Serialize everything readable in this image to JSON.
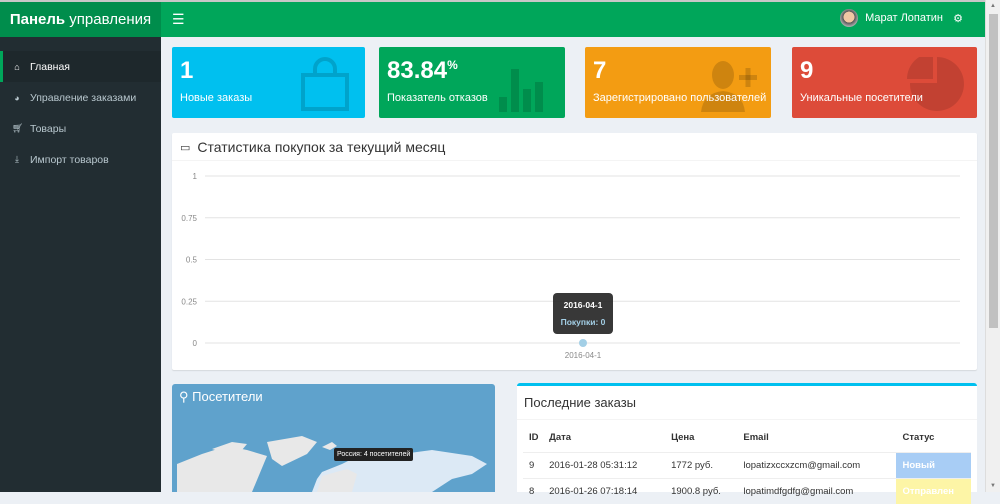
{
  "header": {
    "logo_bold": "Панель",
    "logo_rest": " управления",
    "menu_icon": "bars-icon",
    "user_name": "Марат Лопатин",
    "settings_icon": "gears-icon"
  },
  "sidebar": {
    "items": [
      {
        "label": "Главная",
        "icon": "home-icon",
        "active": true
      },
      {
        "label": "Управление заказами",
        "icon": "pie-chart-icon"
      },
      {
        "label": "Товары",
        "icon": "cart-icon"
      },
      {
        "label": "Импорт товаров",
        "icon": "download-icon"
      }
    ]
  },
  "stats": [
    {
      "value": "1",
      "suffix": "",
      "label": "Новые заказы",
      "color": "#00c0ef",
      "icon": "shopping-bag-icon"
    },
    {
      "value": "83.84",
      "suffix": "%",
      "label": "Показатель отказов",
      "color": "#00a65a",
      "icon": "bar-chart-icon"
    },
    {
      "value": "7",
      "suffix": "",
      "label": "Зарегистрировано пользователей",
      "color": "#f39c12",
      "icon": "user-plus-icon"
    },
    {
      "value": "9",
      "suffix": "",
      "label": "Уникальные посетители",
      "color": "#dd4b39",
      "icon": "pie-chart-icon"
    }
  ],
  "chart_data": {
    "type": "line",
    "title": "Статистика покупок за текущий месяц",
    "categories": [
      "2016-04-1"
    ],
    "series": [
      {
        "name": "Покупки",
        "values": [
          0
        ]
      }
    ],
    "ylim": [
      0,
      1
    ],
    "yticks": [
      "1",
      "0.75",
      "0.5",
      "0.25",
      "0"
    ],
    "grid": true,
    "tooltip": {
      "title": "2016-04-1",
      "text": "Покупки: 0"
    }
  },
  "visitors": {
    "title": "Посетители",
    "tooltip": "Россия: 4 посетителей"
  },
  "orders": {
    "title": "Последние заказы",
    "columns": [
      "ID",
      "Дата",
      "Цена",
      "Email",
      "Статус"
    ],
    "rows": [
      {
        "id": "9",
        "date": "2016-01-28 05:31:12",
        "price": "1772 руб.",
        "email": "lopatizxccxzcm@gmail.com",
        "status": "Новый",
        "status_color": "#a8cdf5"
      },
      {
        "id": "8",
        "date": "2016-01-26 07:18:14",
        "price": "1900.8 руб.",
        "email": "lopatimdfgdfg@gmail.com",
        "status": "Отправлен",
        "status_color": "#fdf5a6"
      }
    ]
  }
}
